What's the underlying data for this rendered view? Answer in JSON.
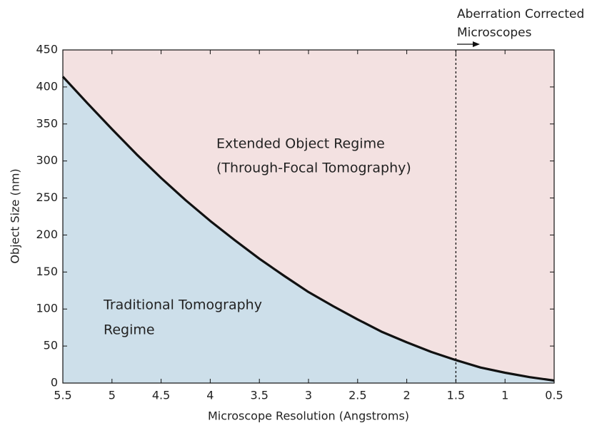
{
  "chart_data": {
    "type": "line",
    "x_label": "Microscope Resolution  (Angstroms)",
    "y_label": "Object Size (nm)",
    "x": [
      5.5,
      5.25,
      5,
      4.75,
      4.5,
      4.25,
      4,
      3.75,
      3.5,
      3.25,
      3,
      2.75,
      2.5,
      2.25,
      2,
      1.75,
      1.5,
      1.25,
      1,
      0.75,
      0.5
    ],
    "series": [
      {
        "color": "#111111",
        "values": [
          414,
          378,
          343,
          309,
          277,
          247,
          219,
          193,
          168,
          145,
          123,
          104,
          86,
          69,
          55,
          42,
          31,
          21,
          14,
          8,
          3.4
        ]
      }
    ],
    "below_color": "#cddfea",
    "above_color": "#f3e1e1",
    "xlim": [
      5.5,
      0.5
    ],
    "xticks": [
      5.5,
      5,
      4.5,
      4,
      3.5,
      3,
      2.5,
      2,
      1.5,
      1,
      0.5
    ],
    "ylim": [
      0,
      450
    ],
    "yticks": [
      0,
      50,
      100,
      150,
      200,
      250,
      300,
      350,
      400,
      450
    ],
    "reference_x": 1.5,
    "annotations": [
      {
        "lines": [
          "Extended Object Regime",
          "(Through-Focal Tomography)"
        ]
      },
      {
        "lines": [
          "Traditional Tomography",
          "Regime"
        ]
      },
      {
        "lines": [
          "Aberration Corrected",
          "Microscopes"
        ]
      }
    ]
  }
}
